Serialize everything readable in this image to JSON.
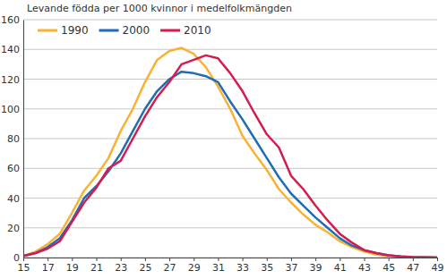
{
  "chart_data": {
    "type": "line",
    "title": "Levande födda per 1000 kvinnor i medelfolkmängden",
    "x": [
      15,
      16,
      17,
      18,
      19,
      20,
      21,
      22,
      23,
      24,
      25,
      26,
      27,
      28,
      29,
      30,
      31,
      32,
      33,
      34,
      35,
      36,
      37,
      38,
      39,
      40,
      41,
      42,
      43,
      44,
      45,
      46,
      47,
      48,
      49
    ],
    "series": [
      {
        "name": "1990",
        "color": "#f9b233",
        "values": [
          1,
          4,
          9,
          16,
          30,
          45,
          55,
          67,
          85,
          100,
          118,
          133,
          139,
          141,
          137,
          128,
          115,
          100,
          82,
          70,
          59,
          46,
          37,
          29,
          22,
          17,
          11,
          7,
          4,
          2,
          1,
          0.5,
          0.3,
          0.1,
          0
        ]
      },
      {
        "name": "2000",
        "color": "#1f6db5",
        "values": [
          1,
          3,
          7,
          13,
          25,
          40,
          48,
          58,
          70,
          85,
          100,
          112,
          120,
          125,
          124,
          122,
          118,
          105,
          93,
          80,
          67,
          54,
          43,
          35,
          27,
          20,
          13,
          8,
          5,
          3,
          1.5,
          0.7,
          0.3,
          0.1,
          0
        ]
      },
      {
        "name": "2010",
        "color": "#d51c4e",
        "values": [
          1,
          3,
          6,
          11,
          24,
          37,
          47,
          60,
          65,
          80,
          95,
          108,
          118,
          130,
          133,
          136,
          134,
          124,
          112,
          97,
          83,
          74,
          55,
          46,
          35,
          25,
          16,
          10,
          5,
          3,
          1.5,
          0.8,
          0.3,
          0.1,
          0
        ]
      }
    ],
    "xlim": [
      15,
      49
    ],
    "ylim": [
      0,
      160
    ],
    "xticks": [
      15,
      17,
      19,
      21,
      23,
      25,
      27,
      29,
      31,
      33,
      35,
      37,
      39,
      41,
      43,
      45,
      47,
      49
    ],
    "yticks": [
      0,
      20,
      40,
      60,
      80,
      100,
      120,
      140,
      160
    ],
    "grid": true,
    "legend": "upper left"
  }
}
